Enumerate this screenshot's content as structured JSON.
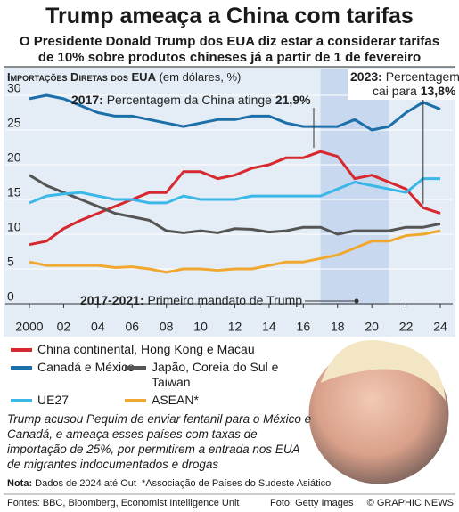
{
  "title": "Trump ameaça a China com tarifas",
  "subtitle": [
    "O Presidente Donald Trump dos EUA diz estar a considerar tarifas",
    "de 10% sobre produtos chineses já a partir de 1 de fevereiro"
  ],
  "chart_data": {
    "type": "line",
    "ylabel": [
      "Importações Diretas dos EUA",
      " (em dólares, %)"
    ],
    "x": [
      2000,
      2001,
      2002,
      2003,
      2004,
      2005,
      2006,
      2007,
      2008,
      2009,
      2010,
      2011,
      2012,
      2013,
      2014,
      2015,
      2016,
      2017,
      2018,
      2019,
      2020,
      2021,
      2022,
      2023,
      2024
    ],
    "series": [
      {
        "name": "China continental, Hong Kong e Macau",
        "color": "#d7282f",
        "values": [
          8.5,
          9,
          10.8,
          12,
          13,
          14,
          15,
          16,
          16,
          19,
          19,
          18,
          18.5,
          19.5,
          20,
          21,
          21,
          21.9,
          21.2,
          18,
          18.5,
          17.5,
          16.5,
          13.8,
          13
        ]
      },
      {
        "name": "Canadá e México",
        "color": "#1c6fa8",
        "values": [
          29.5,
          30,
          29.5,
          28.5,
          27.5,
          27,
          27,
          26.5,
          26,
          25.5,
          26,
          26.5,
          26.5,
          27,
          27,
          26,
          25.5,
          25.5,
          25.5,
          26.5,
          25,
          25.5,
          27.5,
          29,
          28
        ]
      },
      {
        "name": "Japão, Coreia do Sul e Taiwan",
        "color": "#555555",
        "values": [
          18.5,
          17,
          16,
          15,
          14,
          13,
          12.5,
          12,
          10.5,
          10.2,
          10.5,
          10.2,
          10.8,
          10.7,
          10.3,
          10.5,
          11,
          11,
          10,
          10.5,
          10.5,
          10.5,
          11,
          11,
          11.5
        ]
      },
      {
        "name": "UE27",
        "color": "#3bb8e8",
        "values": [
          14.5,
          15.5,
          15.8,
          16,
          15.5,
          15,
          15,
          14.5,
          14.5,
          15.5,
          15,
          15,
          15,
          15.5,
          15.5,
          15.5,
          15.5,
          15.5,
          16.5,
          17.5,
          17,
          16.5,
          16,
          18,
          18
        ]
      },
      {
        "name": "ASEAN*",
        "color": "#f0a830",
        "values": [
          6,
          5.5,
          5.5,
          5.5,
          5.5,
          5.2,
          5.3,
          5,
          4.5,
          5,
          5,
          4.8,
          5,
          5,
          5.5,
          6,
          6,
          6.5,
          7,
          8,
          9,
          9,
          9.8,
          10,
          10.5
        ]
      }
    ],
    "xlim": [
      2000,
      2024
    ],
    "ylim": [
      0,
      30
    ],
    "xticks": [
      2000,
      {
        "value": 2002,
        "label": "02"
      },
      {
        "value": 2004,
        "label": "04"
      },
      {
        "value": 2006,
        "label": "06"
      },
      {
        "value": 2008,
        "label": "08"
      },
      {
        "value": 2010,
        "label": "10"
      },
      {
        "value": 2012,
        "label": "12"
      },
      {
        "value": 2014,
        "label": "14"
      },
      {
        "value": 2016,
        "label": "16"
      },
      {
        "value": 2018,
        "label": "18"
      },
      {
        "value": 2020,
        "label": "20"
      },
      {
        "value": 2022,
        "label": "22"
      },
      {
        "value": 2024,
        "label": "24"
      }
    ],
    "yticks": [
      0,
      5,
      10,
      15,
      20,
      25,
      30
    ],
    "grid": true,
    "shade": [
      2017,
      2021
    ],
    "annotations": [
      {
        "parts": [
          "2017:",
          " Percentagem da China atinge ",
          "21,9%"
        ]
      },
      {
        "parts": [
          "2023:",
          " Percentagem"
        ],
        "parts2": [
          "cai para ",
          "13,8%"
        ]
      },
      {
        "parts": [
          "2017-2021:",
          " Primeiro mandato de Trump"
        ]
      }
    ]
  },
  "text": "Trump acusou Pequim de enviar fentanil para o México e Canadá, e ameaça esses países com taxas de importação de 25%, por permitirem a entrada nos EUA de migrantes indocumentados e drogas",
  "note": {
    "label": "Nota:",
    "text": "Dados de 2024 até Out",
    "footnote": "*Associação de Países do Sudeste Asiático"
  },
  "footer": {
    "sources": "Fontes: BBC, Bloomberg, Economist Intelligence Unit",
    "photo": "Foto: Getty Images",
    "credit": "© GRAPHIC NEWS"
  }
}
